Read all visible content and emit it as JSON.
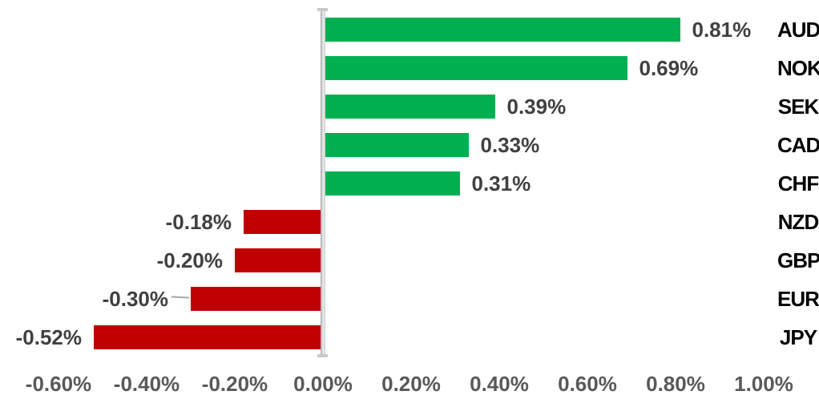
{
  "chart_data": {
    "type": "bar",
    "orientation": "horizontal",
    "title": "",
    "xlabel": "",
    "ylabel": "",
    "gridlines": false,
    "legend": false,
    "unit": "percent",
    "categories": [
      "AUD",
      "NOK",
      "SEK",
      "CAD",
      "CHF",
      "NZD",
      "GBP",
      "EUR",
      "JPY"
    ],
    "values": [
      0.81,
      0.69,
      0.39,
      0.33,
      0.31,
      -0.18,
      -0.2,
      -0.3,
      -0.52
    ],
    "value_labels": [
      "0.81%",
      "0.69%",
      "0.39%",
      "0.33%",
      "0.31%",
      "-0.18%",
      "-0.20%",
      "-0.30%",
      "-0.52%"
    ],
    "leader_line_category": "EUR",
    "x_axis": {
      "min": -0.6,
      "max": 1.0,
      "tick_values": [
        -0.6,
        -0.4,
        -0.2,
        0.0,
        0.2,
        0.4,
        0.6,
        0.8,
        1.0
      ],
      "tick_labels": [
        "-0.60%",
        "-0.40%",
        "-0.20%",
        "0.00%",
        "0.20%",
        "0.40%",
        "0.60%",
        "0.80%",
        "1.00%"
      ]
    },
    "colors": {
      "positive_bar": "#00B050",
      "negative_bar": "#C00000",
      "value_label": "#404040",
      "category_label": "#000000",
      "axis_tick_label": "#595959",
      "axis_line": "#d9d9d9",
      "leader_line": "#a6a6a6"
    }
  }
}
